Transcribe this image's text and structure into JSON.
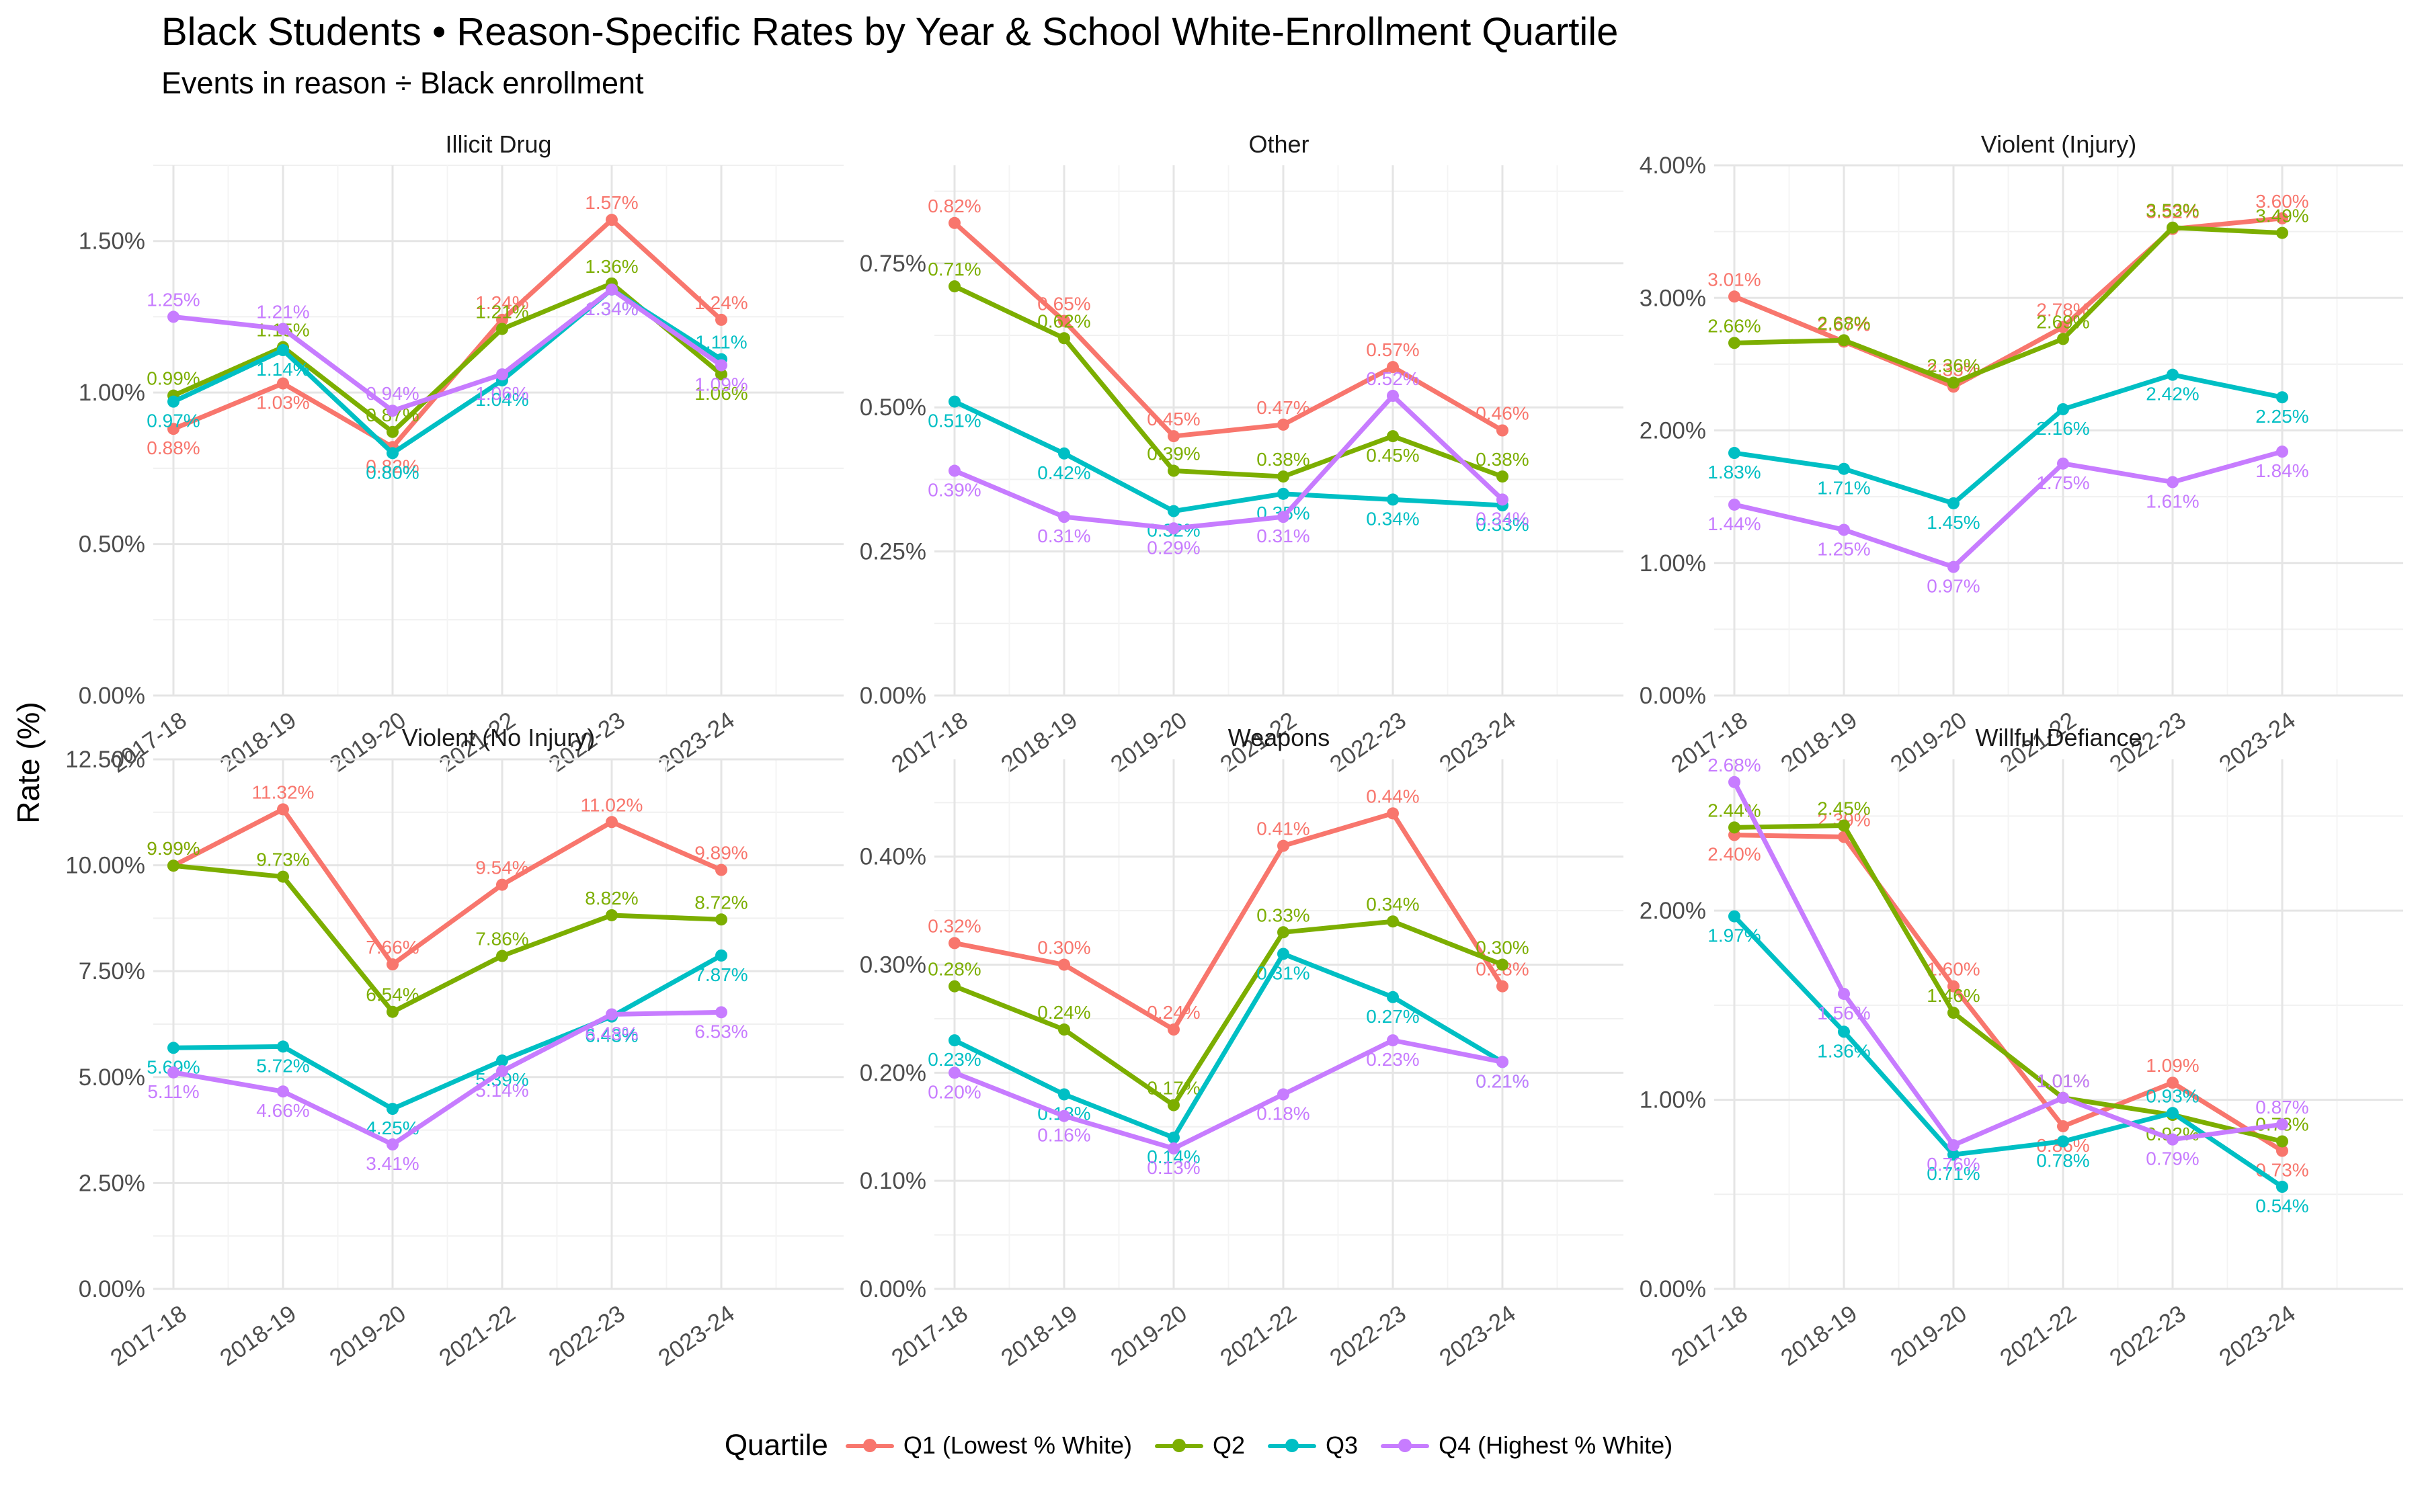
{
  "title": "Black Students • Reason-Specific Rates by Year & School White-Enrollment Quartile",
  "subtitle": "Events in reason ÷ Black enrollment",
  "ylabel": "Rate (%)",
  "legend": {
    "title": "Quartile",
    "placement": "bottom",
    "items": [
      {
        "name": "Q1 (Lowest % White)",
        "color": "#F8766D"
      },
      {
        "name": "Q2",
        "color": "#7CAE00"
      },
      {
        "name": "Q3",
        "color": "#00BFC4"
      },
      {
        "name": "Q4 (Highest % White)",
        "color": "#C77CFF"
      }
    ]
  },
  "chart_data": [
    {
      "type": "line",
      "title": "Illicit Drug",
      "categories": [
        "2017-18",
        "2018-19",
        "2019-20",
        "2021-22",
        "2022-23",
        "2023-24"
      ],
      "ylim": [
        0,
        1.75
      ],
      "yticks": [
        0,
        0.5,
        1.0,
        1.5
      ],
      "ytick_labels": [
        "0.00%",
        "0.50%",
        "1.00%",
        "1.50%"
      ],
      "grid": true,
      "series": [
        {
          "name": "Q1 (Lowest % White)",
          "values": [
            0.88,
            1.03,
            0.82,
            1.24,
            1.57,
            1.24
          ],
          "labels": [
            "0.88%",
            "1.03%",
            "0.82%",
            "1.24%",
            "1.57%",
            "1.24%"
          ]
        },
        {
          "name": "Q2",
          "values": [
            0.99,
            1.15,
            0.87,
            1.21,
            1.36,
            1.06
          ],
          "labels": [
            "0.99%",
            "1.15%",
            "0.87%",
            "1.21%",
            "1.36%",
            "1.06%"
          ]
        },
        {
          "name": "Q3",
          "values": [
            0.97,
            1.14,
            0.8,
            1.04,
            1.34,
            1.11
          ],
          "labels": [
            "0.97%",
            "1.14%",
            "0.80%",
            "1.04%",
            "1.34%",
            "1.11%"
          ]
        },
        {
          "name": "Q4 (Highest % White)",
          "values": [
            1.25,
            1.21,
            0.94,
            1.06,
            1.34,
            1.09
          ],
          "labels": [
            "1.25%",
            "1.21%",
            "0.94%",
            "1.06%",
            "1.34%",
            "1.09%"
          ]
        }
      ]
    },
    {
      "type": "line",
      "title": "Other",
      "categories": [
        "2017-18",
        "2018-19",
        "2019-20",
        "2021-22",
        "2022-23",
        "2023-24"
      ],
      "ylim": [
        0,
        0.92
      ],
      "yticks": [
        0,
        0.25,
        0.5,
        0.75
      ],
      "ytick_labels": [
        "0.00%",
        "0.25%",
        "0.50%",
        "0.75%"
      ],
      "grid": true,
      "series": [
        {
          "name": "Q1 (Lowest % White)",
          "values": [
            0.82,
            0.65,
            0.45,
            0.47,
            0.57,
            0.46
          ],
          "labels": [
            "0.82%",
            "0.65%",
            "0.45%",
            "0.47%",
            "0.57%",
            "0.46%"
          ]
        },
        {
          "name": "Q2",
          "values": [
            0.71,
            0.62,
            0.39,
            0.38,
            0.45,
            0.38
          ],
          "labels": [
            "0.71%",
            "0.62%",
            "0.39%",
            "0.38%",
            "0.45%",
            "0.38%"
          ]
        },
        {
          "name": "Q3",
          "values": [
            0.51,
            0.42,
            0.32,
            0.35,
            0.34,
            0.33
          ],
          "labels": [
            "0.51%",
            "0.42%",
            "0.32%",
            "0.35%",
            "0.34%",
            "0.33%"
          ]
        },
        {
          "name": "Q4 (Highest % White)",
          "values": [
            0.39,
            0.31,
            0.29,
            0.31,
            0.52,
            0.34
          ],
          "labels": [
            "0.39%",
            "0.31%",
            "0.29%",
            "0.31%",
            "0.52%",
            "0.34%"
          ]
        }
      ]
    },
    {
      "type": "line",
      "title": "Violent (Injury)",
      "categories": [
        "2017-18",
        "2018-19",
        "2019-20",
        "2021-22",
        "2022-23",
        "2023-24"
      ],
      "ylim": [
        0,
        4.0
      ],
      "yticks": [
        0,
        1,
        2,
        3,
        4
      ],
      "ytick_labels": [
        "0.00%",
        "1.00%",
        "2.00%",
        "3.00%",
        "4.00%"
      ],
      "grid": true,
      "series": [
        {
          "name": "Q1 (Lowest % White)",
          "values": [
            3.01,
            2.67,
            2.33,
            2.78,
            3.52,
            3.6
          ],
          "labels": [
            "3.01%",
            "2.67%",
            "2.33%",
            "2.78%",
            "3.52%",
            "3.60%"
          ]
        },
        {
          "name": "Q2",
          "values": [
            2.66,
            2.68,
            2.36,
            2.69,
            3.53,
            3.49
          ],
          "labels": [
            "2.66%",
            "2.68%",
            "2.36%",
            "2.69%",
            "3.53%",
            "3.49%"
          ]
        },
        {
          "name": "Q3",
          "values": [
            1.83,
            1.71,
            1.45,
            2.16,
            2.42,
            2.25
          ],
          "labels": [
            "1.83%",
            "1.71%",
            "1.45%",
            "2.16%",
            "2.42%",
            "2.25%"
          ]
        },
        {
          "name": "Q4 (Highest % White)",
          "values": [
            1.44,
            1.25,
            0.97,
            1.75,
            1.61,
            1.84
          ],
          "labels": [
            "1.44%",
            "1.25%",
            "0.97%",
            "1.75%",
            "1.61%",
            "1.84%"
          ]
        }
      ]
    },
    {
      "type": "line",
      "title": "Violent (No Injury)",
      "categories": [
        "2017-18",
        "2018-19",
        "2019-20",
        "2021-22",
        "2022-23",
        "2023-24"
      ],
      "ylim": [
        0,
        12.5
      ],
      "yticks": [
        0,
        2.5,
        5,
        7.5,
        10,
        12.5
      ],
      "ytick_labels": [
        "0.00%",
        "2.50%",
        "5.00%",
        "7.50%",
        "10.00%",
        "12.50%"
      ],
      "grid": true,
      "series": [
        {
          "name": "Q1 (Lowest % White)",
          "values": [
            9.99,
            11.32,
            7.66,
            9.54,
            11.02,
            9.89
          ],
          "labels": [
            "9.99%",
            "11.32%",
            "7.66%",
            "9.54%",
            "11.02%",
            "9.89%"
          ]
        },
        {
          "name": "Q2",
          "values": [
            9.99,
            9.73,
            6.54,
            7.86,
            8.82,
            8.72
          ],
          "labels": [
            "9.99%",
            "9.73%",
            "6.54%",
            "7.86%",
            "8.82%",
            "8.72%"
          ]
        },
        {
          "name": "Q3",
          "values": [
            5.69,
            5.72,
            4.25,
            5.39,
            6.43,
            7.87
          ],
          "labels": [
            "5.69%",
            "5.72%",
            "4.25%",
            "5.39%",
            "6.43%",
            "7.87%"
          ]
        },
        {
          "name": "Q4 (Highest % White)",
          "values": [
            5.11,
            4.66,
            3.41,
            5.14,
            6.48,
            6.53
          ],
          "labels": [
            "5.11%",
            "4.66%",
            "3.41%",
            "5.14%",
            "6.48%",
            "6.53%"
          ]
        }
      ]
    },
    {
      "type": "line",
      "title": "Weapons",
      "categories": [
        "2017-18",
        "2018-19",
        "2019-20",
        "2021-22",
        "2022-23",
        "2023-24"
      ],
      "ylim": [
        0,
        0.49
      ],
      "yticks": [
        0,
        0.1,
        0.2,
        0.3,
        0.4
      ],
      "ytick_labels": [
        "0.00%",
        "0.10%",
        "0.20%",
        "0.30%",
        "0.40%"
      ],
      "grid": true,
      "series": [
        {
          "name": "Q1 (Lowest % White)",
          "values": [
            0.32,
            0.3,
            0.24,
            0.41,
            0.44,
            0.28
          ],
          "labels": [
            "0.32%",
            "0.30%",
            "0.24%",
            "0.41%",
            "0.44%",
            "0.28%"
          ]
        },
        {
          "name": "Q2",
          "values": [
            0.28,
            0.24,
            0.17,
            0.33,
            0.34,
            0.3
          ],
          "labels": [
            "0.28%",
            "0.24%",
            "0.17%",
            "0.33%",
            "0.34%",
            "0.30%"
          ]
        },
        {
          "name": "Q3",
          "values": [
            0.23,
            0.18,
            0.14,
            0.31,
            0.27,
            0.21
          ],
          "labels": [
            "0.23%",
            "0.18%",
            "0.14%",
            "0.31%",
            "0.27%",
            "0.21%"
          ]
        },
        {
          "name": "Q4 (Highest % White)",
          "values": [
            0.2,
            0.16,
            0.13,
            0.18,
            0.23,
            0.21
          ],
          "labels": [
            "0.20%",
            "0.16%",
            "0.13%",
            "0.18%",
            "0.23%",
            "0.21%"
          ]
        }
      ]
    },
    {
      "type": "line",
      "title": "Willful Defiance",
      "categories": [
        "2017-18",
        "2018-19",
        "2019-20",
        "2021-22",
        "2022-23",
        "2023-24"
      ],
      "ylim": [
        0,
        2.8
      ],
      "yticks": [
        0,
        1,
        2
      ],
      "ytick_labels": [
        "0.00%",
        "1.00%",
        "2.00%"
      ],
      "grid": true,
      "series": [
        {
          "name": "Q1 (Lowest % White)",
          "values": [
            2.4,
            2.39,
            1.6,
            0.86,
            1.09,
            0.73
          ],
          "labels": [
            "2.40%",
            "2.39%",
            "1.60%",
            "0.86%",
            "1.09%",
            "0.73%"
          ]
        },
        {
          "name": "Q2",
          "values": [
            2.44,
            2.45,
            1.46,
            1.01,
            0.92,
            0.78
          ],
          "labels": [
            "2.44%",
            "2.45%",
            "1.46%",
            "1.01%",
            "0.92%",
            "0.78%"
          ]
        },
        {
          "name": "Q3",
          "values": [
            1.97,
            1.36,
            0.71,
            0.78,
            0.93,
            0.54
          ],
          "labels": [
            "1.97%",
            "1.36%",
            "0.71%",
            "0.78%",
            "0.93%",
            "0.54%"
          ]
        },
        {
          "name": "Q4 (Highest % White)",
          "values": [
            2.68,
            1.56,
            0.76,
            1.01,
            0.79,
            0.87
          ],
          "labels": [
            "2.68%",
            "1.56%",
            "0.76%",
            "1.01%",
            "0.79%",
            "0.87%"
          ]
        }
      ]
    }
  ]
}
